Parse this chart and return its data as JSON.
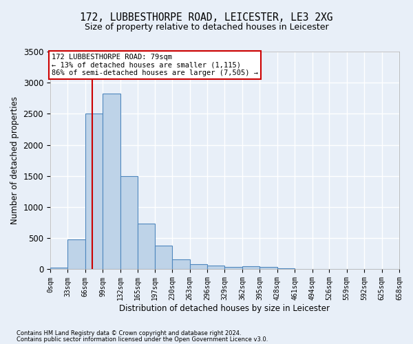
{
  "title": "172, LUBBESTHORPE ROAD, LEICESTER, LE3 2XG",
  "subtitle": "Size of property relative to detached houses in Leicester",
  "xlabel": "Distribution of detached houses by size in Leicester",
  "ylabel": "Number of detached properties",
  "footnote1": "Contains HM Land Registry data © Crown copyright and database right 2024.",
  "footnote2": "Contains public sector information licensed under the Open Government Licence v3.0.",
  "bin_edges": [
    0,
    33,
    66,
    99,
    132,
    165,
    197,
    230,
    263,
    296,
    329,
    362,
    395,
    428,
    461,
    494,
    526,
    559,
    592,
    625,
    658
  ],
  "bar_values": [
    25,
    480,
    2500,
    2820,
    1500,
    740,
    380,
    155,
    80,
    55,
    40,
    45,
    35,
    20,
    5,
    3,
    2,
    1,
    0,
    0
  ],
  "bar_color": "#bed3e8",
  "bar_edge_color": "#4f87be",
  "bg_color": "#e8eff8",
  "grid_color": "#ffffff",
  "property_size": 79,
  "vline_color": "#cc0000",
  "annotation_line1": "172 LUBBESTHORPE ROAD: 79sqm",
  "annotation_line2": "← 13% of detached houses are smaller (1,115)",
  "annotation_line3": "86% of semi-detached houses are larger (7,505) →",
  "annotation_box_edgecolor": "#cc0000",
  "ylim": [
    0,
    3500
  ],
  "yticks": [
    0,
    500,
    1000,
    1500,
    2000,
    2500,
    3000,
    3500
  ],
  "title_fontsize": 10.5,
  "subtitle_fontsize": 9,
  "axis_label_fontsize": 8.5,
  "ytick_fontsize": 8.5,
  "xtick_fontsize": 7,
  "footnote_fontsize": 6
}
